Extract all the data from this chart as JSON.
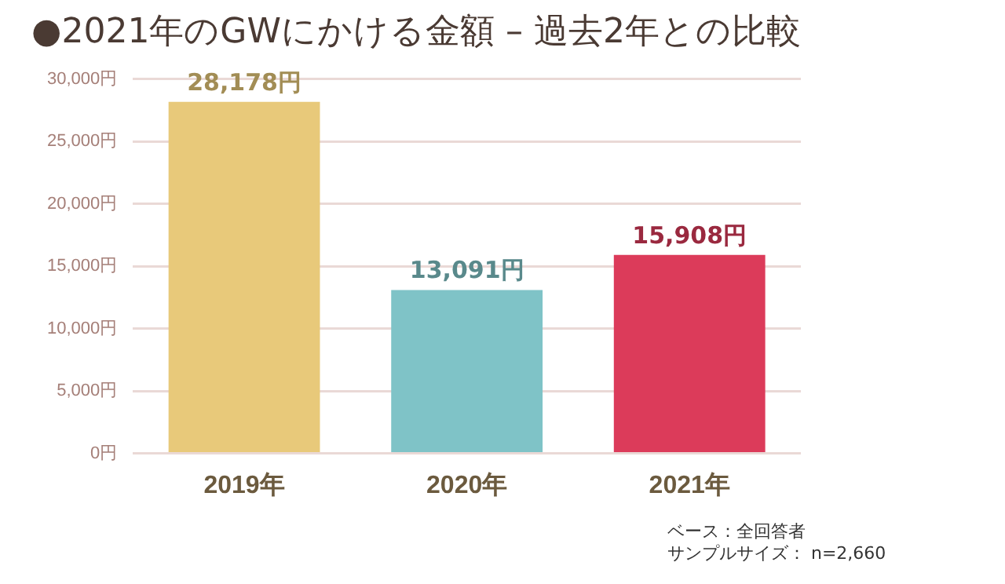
{
  "chart_data": {
    "type": "bar",
    "title": "●2021年のGWにかける金額 – 過去2年との比較",
    "categories": [
      "2019年",
      "2020年",
      "2021年"
    ],
    "values": [
      28178,
      13091,
      15908
    ],
    "colors": [
      "#e8c97a",
      "#7fc3c7",
      "#dc3b5a"
    ],
    "value_labels": [
      "28,178円",
      "13,091円",
      "15,908円"
    ],
    "ylim": [
      0,
      30000
    ],
    "yticks": [
      {
        "value": 0,
        "label": "0円"
      },
      {
        "value": 5000,
        "label": "5,000円"
      },
      {
        "value": 10000,
        "label": "10,000円"
      },
      {
        "value": 15000,
        "label": "15,000円"
      },
      {
        "value": 20000,
        "label": "20,000円"
      },
      {
        "value": 25000,
        "label": "25,000円"
      },
      {
        "value": 30000,
        "label": "30,000円"
      }
    ],
    "grid": "y",
    "legend": false,
    "annotations": [
      "ベース：全回答者",
      "サンプルサイズ： n=2,660"
    ]
  }
}
